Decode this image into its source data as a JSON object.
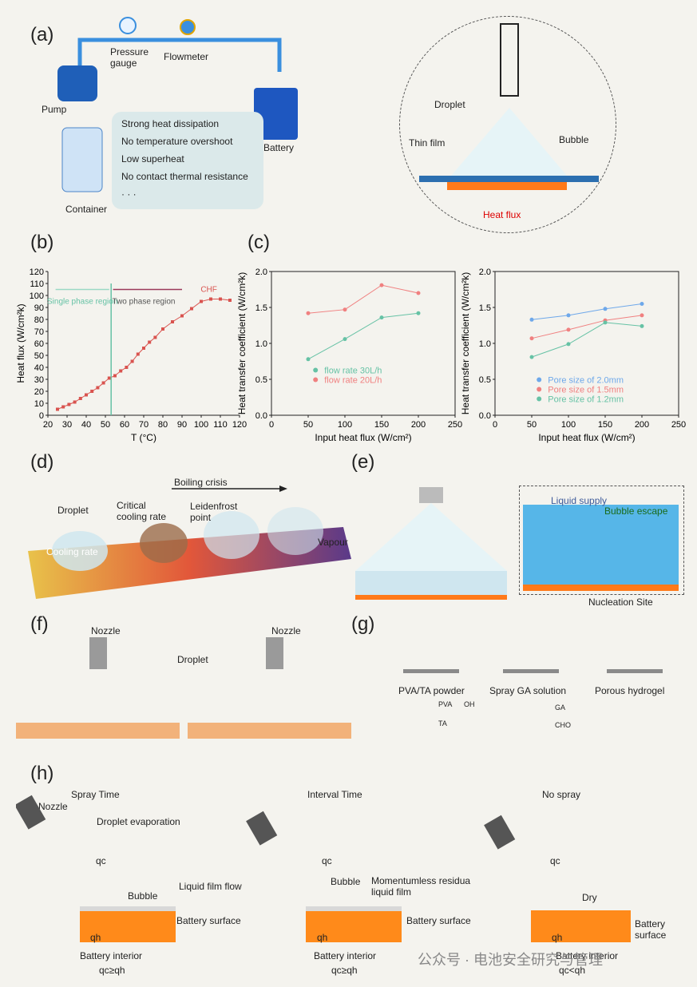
{
  "panels": {
    "a": "(a)",
    "b": "(b)",
    "c": "(c)",
    "d": "(d)",
    "e": "(e)",
    "f": "(f)",
    "g": "(g)",
    "h": "(h)"
  },
  "a": {
    "pressure_gauge": "Pressure gauge",
    "flowmeter": "Flowmeter",
    "pump": "Pump",
    "battery": "Battery",
    "container": "Container",
    "benefits": [
      "Strong heat dissipation",
      "No temperature overshoot",
      "Low superheat",
      "No contact thermal resistance",
      "· · ·"
    ],
    "droplet": "Droplet",
    "thin_film": "Thin film",
    "bubble": "Bubble",
    "heat_flux": "Heat flux"
  },
  "d": {
    "title": "Boiling crisis",
    "labels": [
      "Droplet",
      "Critical cooling rate",
      "Leidenfrost point",
      "Vapour",
      "Cooling rate"
    ]
  },
  "e": {
    "liquid_supply": "Liquid supply",
    "bubble_escape": "Bubble escape",
    "nucleation": "Nucleation Site"
  },
  "f": {
    "nozzle": "Nozzle",
    "droplet": "Droplet"
  },
  "g": {
    "steps": [
      "PVA/TA powder",
      "Spray GA solution",
      "Porous hydrogel"
    ],
    "legend": [
      "PVA",
      "OH",
      "TA",
      "GA",
      "CHO"
    ]
  },
  "h": {
    "titles": [
      "Spray Time",
      "Interval Time",
      "No spray"
    ],
    "nozzle": "Nozzle",
    "droplet_evap": "Droplet evaporation",
    "qc": "qc",
    "qh": "qh",
    "bubble": "Bubble",
    "liquid_film": "Liquid film flow",
    "battery_surface": "Battery surface",
    "battery_interior": "Battery interior",
    "cond_spray": "qc≥qh",
    "cond_interval": "qc≥qh",
    "cond_nospray": "qc<qh",
    "momentumless": "Momentumless residua liquid film",
    "dry": "Dry"
  },
  "watermark": "公众号 · 电池安全研究与管理",
  "colors": {
    "red": "#f08080",
    "green": "#66c2a5",
    "blue": "#6ea8ea",
    "b_curve": "#d9534f"
  },
  "chart_data": [
    {
      "type": "line",
      "panel": "b",
      "xlabel": "T (°C)",
      "ylabel": "Heat flux (W/cm²k)",
      "xlim": [
        20,
        120
      ],
      "ylim": [
        0,
        120
      ],
      "xticks": [
        20,
        30,
        40,
        50,
        60,
        70,
        80,
        90,
        100,
        110,
        120
      ],
      "yticks": [
        0,
        10,
        20,
        30,
        40,
        50,
        60,
        70,
        80,
        90,
        100,
        110,
        120
      ],
      "annotations": [
        "Single phase region",
        "Two phase region",
        "CHF"
      ],
      "series": [
        {
          "x": [
            25,
            28,
            31,
            34,
            37,
            40,
            43,
            46,
            49,
            52,
            55,
            58,
            61,
            64,
            67,
            70,
            73,
            76,
            80,
            85,
            90,
            95,
            100,
            105,
            110,
            115
          ],
          "y": [
            5,
            7,
            9,
            11,
            14,
            17,
            20,
            23,
            27,
            31,
            33,
            37,
            40,
            45,
            51,
            56,
            61,
            65,
            72,
            78,
            83,
            89,
            95,
            97,
            97,
            96
          ]
        }
      ]
    },
    {
      "type": "line",
      "panel": "c-left",
      "xlabel": "Input heat flux (W/cm²)",
      "ylabel": "Heat transfer coefficient (W/cm²k)",
      "xlim": [
        0,
        250
      ],
      "ylim": [
        0.0,
        2.0
      ],
      "xticks": [
        0,
        50,
        100,
        150,
        200,
        250
      ],
      "yticks": [
        "0.0",
        "0.5",
        "1.0",
        "1.5",
        "2.0"
      ],
      "x": [
        50,
        100,
        150,
        200
      ],
      "series": [
        {
          "name": "flow rate 20L/h",
          "values": [
            1.42,
            1.47,
            1.81,
            1.7
          ]
        },
        {
          "name": "flow rate 30L/h",
          "values": [
            0.78,
            1.06,
            1.36,
            1.42
          ]
        }
      ]
    },
    {
      "type": "line",
      "panel": "c-right",
      "xlabel": "Input heat flux (W/cm²)",
      "ylabel": "Heat transfer coefficient (W/cm²k)",
      "xlim": [
        0,
        250
      ],
      "ylim": [
        0.0,
        2.0
      ],
      "xticks": [
        0,
        50,
        100,
        150,
        200,
        250
      ],
      "yticks": [
        "0.0",
        "0.5",
        "1.0",
        "1.5",
        "2.0"
      ],
      "x": [
        50,
        100,
        150,
        200
      ],
      "series": [
        {
          "name": "Pore size of 2.0mm",
          "values": [
            1.33,
            1.39,
            1.48,
            1.55
          ]
        },
        {
          "name": "Pore size of 1.5mm",
          "values": [
            1.07,
            1.19,
            1.32,
            1.39
          ]
        },
        {
          "name": "Pore size of 1.2mm",
          "values": [
            0.81,
            0.99,
            1.29,
            1.24
          ]
        }
      ]
    }
  ]
}
